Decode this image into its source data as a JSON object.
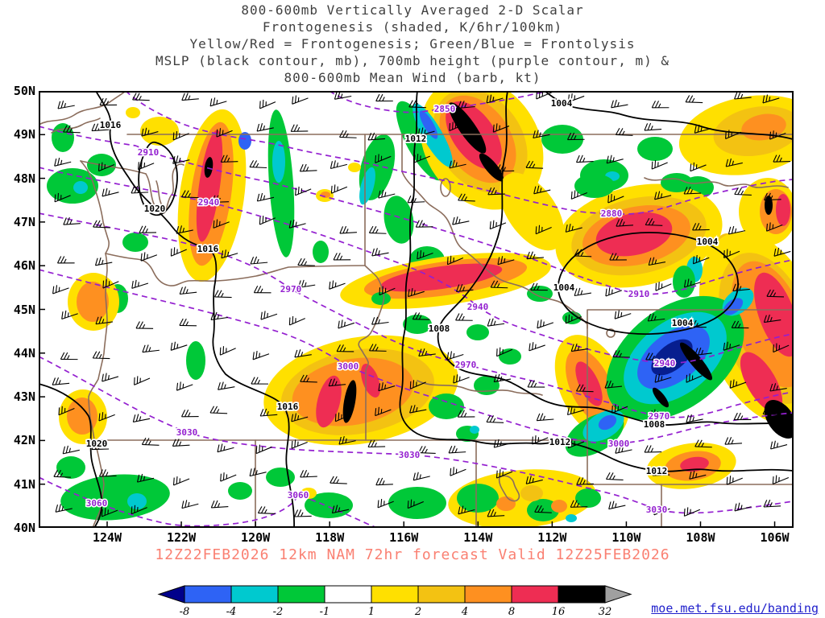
{
  "title_lines": [
    "800-600mb Vertically Averaged 2-D Scalar",
    "Frontogenesis (shaded, K/6hr/100km)",
    "Yellow/Red = Frontogenesis;  Green/Blue = Frontolysis",
    "MSLP (black contour, mb), 700mb height (purple contour, m) &",
    "800-600mb Mean Wind (barb, kt)"
  ],
  "caption": "12Z22FEB2026 12km NAM 72hr forecast Valid 12Z25FEB2026",
  "watermark": "moe.met.fsu.edu/banding",
  "axes": {
    "lat_ticks": [
      "50N",
      "49N",
      "48N",
      "47N",
      "46N",
      "45N",
      "44N",
      "43N",
      "42N",
      "41N",
      "40N"
    ],
    "lon_ticks": [
      "124W",
      "122W",
      "120W",
      "118W",
      "116W",
      "114W",
      "112W",
      "110W",
      "108W",
      "106W"
    ]
  },
  "colorbar": {
    "tick_labels": [
      "-8",
      "-4",
      "-2",
      "-1",
      "1",
      "2",
      "4",
      "8",
      "16",
      "32"
    ],
    "segments": [
      {
        "label": "< -8",
        "color": "#00008b",
        "shape": "left-arrow"
      },
      {
        "label": "-8 to -4",
        "color": "#2e63f5"
      },
      {
        "label": "-4 to -2",
        "color": "#00c9cf"
      },
      {
        "label": "-2 to -1",
        "color": "#00c838"
      },
      {
        "label": "-1 to 1",
        "color": "#ffffff"
      },
      {
        "label": "1 to 2",
        "color": "#ffe000"
      },
      {
        "label": "2 to 4",
        "color": "#f3c212"
      },
      {
        "label": "4 to 8",
        "color": "#fe9020"
      },
      {
        "label": "8 to 16",
        "color": "#ee2d53"
      },
      {
        "label": "16 to 32",
        "color": "#000000"
      },
      {
        "label": "> 32",
        "color": "#a0a0a0",
        "shape": "right-arrow"
      }
    ]
  },
  "chart_data": {
    "type": "heatmap",
    "title": "800-600mb Vertically Averaged 2-D Scalar Frontogenesis",
    "shading_units": "K/6hr/100km",
    "shading_meaning": {
      "yellow_red": "Frontogenesis",
      "green_blue": "Frontolysis"
    },
    "overlays": [
      "MSLP (black contour, mb)",
      "700mb height (purple contour, m)",
      "800-600mb mean wind (barb, kt)"
    ],
    "region": {
      "lat_range": [
        "40N",
        "50N"
      ],
      "lon_range": [
        "124W",
        "106W"
      ]
    },
    "shading_levels": [
      -8,
      -4,
      -2,
      -1,
      1,
      2,
      4,
      8,
      16,
      32
    ],
    "model": "12km NAM",
    "init_time": "12Z22FEB2026",
    "forecast_hour": "72hr",
    "valid_time": "12Z25FEB2026",
    "mslp_labels": [
      {
        "v": "1016",
        "lon": 123.92,
        "lat": 49.23
      },
      {
        "v": "1016",
        "lon": 121.28,
        "lat": 46.39
      },
      {
        "v": "1016",
        "lon": 119.13,
        "lat": 42.78
      },
      {
        "v": "1020",
        "lon": 122.72,
        "lat": 47.31
      },
      {
        "v": "1020",
        "lon": 124.28,
        "lat": 41.93
      },
      {
        "v": "1012",
        "lon": 115.68,
        "lat": 48.91
      },
      {
        "v": "1012",
        "lon": 111.78,
        "lat": 41.97
      },
      {
        "v": "1012",
        "lon": 109.18,
        "lat": 41.31
      },
      {
        "v": "1008",
        "lon": 115.05,
        "lat": 44.57
      },
      {
        "v": "1008",
        "lon": 109.24,
        "lat": 42.38
      },
      {
        "v": "1004",
        "lon": 111.74,
        "lat": 49.72
      },
      {
        "v": "1004",
        "lon": 111.68,
        "lat": 45.51
      },
      {
        "v": "1004",
        "lon": 107.81,
        "lat": 46.56
      },
      {
        "v": "1004",
        "lon": 108.48,
        "lat": 44.7
      }
    ],
    "height_labels": [
      {
        "v": "2850",
        "lon": 114.89,
        "lat": 49.59
      },
      {
        "v": "2880",
        "lon": 110.39,
        "lat": 47.2
      },
      {
        "v": "2910",
        "lon": 122.89,
        "lat": 48.6
      },
      {
        "v": "2910",
        "lon": 109.65,
        "lat": 45.36
      },
      {
        "v": "2940",
        "lon": 121.26,
        "lat": 47.46
      },
      {
        "v": "2940",
        "lon": 114.0,
        "lat": 45.06
      },
      {
        "v": "2940",
        "lon": 108.96,
        "lat": 43.78
      },
      {
        "v": "2970",
        "lon": 119.05,
        "lat": 45.47
      },
      {
        "v": "2970",
        "lon": 114.33,
        "lat": 43.74
      },
      {
        "v": "2970",
        "lon": 109.11,
        "lat": 42.56
      },
      {
        "v": "3000",
        "lon": 117.5,
        "lat": 43.7
      },
      {
        "v": "3000",
        "lon": 110.2,
        "lat": 41.93
      },
      {
        "v": "3030",
        "lon": 121.85,
        "lat": 42.19
      },
      {
        "v": "3030",
        "lon": 115.85,
        "lat": 41.68
      },
      {
        "v": "3030",
        "lon": 109.18,
        "lat": 40.42
      },
      {
        "v": "3060",
        "lon": 124.28,
        "lat": 40.57
      },
      {
        "v": "3060",
        "lon": 118.85,
        "lat": 40.76
      }
    ]
  }
}
